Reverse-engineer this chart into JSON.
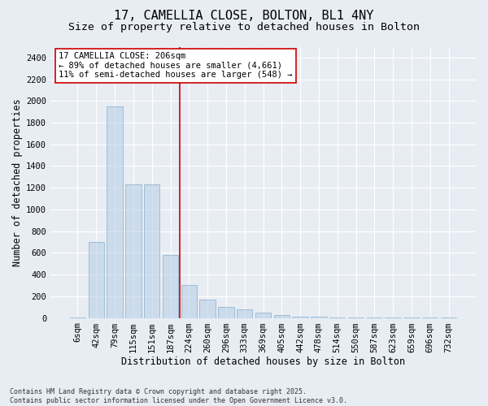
{
  "title1": "17, CAMELLIA CLOSE, BOLTON, BL1 4NY",
  "title2": "Size of property relative to detached houses in Bolton",
  "xlabel": "Distribution of detached houses by size in Bolton",
  "ylabel": "Number of detached properties",
  "bin_labels": [
    "6sqm",
    "42sqm",
    "79sqm",
    "115sqm",
    "151sqm",
    "187sqm",
    "224sqm",
    "260sqm",
    "296sqm",
    "333sqm",
    "369sqm",
    "405sqm",
    "442sqm",
    "478sqm",
    "514sqm",
    "550sqm",
    "587sqm",
    "623sqm",
    "659sqm",
    "696sqm",
    "732sqm"
  ],
  "bar_heights": [
    5,
    700,
    1950,
    1230,
    1230,
    580,
    300,
    170,
    100,
    80,
    50,
    25,
    15,
    10,
    5,
    3,
    2,
    1,
    1,
    1,
    1
  ],
  "bar_color": "#b8d0e8",
  "bar_edgecolor": "#6699bb",
  "bar_alpha": 0.6,
  "vline_color": "#cc0000",
  "vline_pos": 5.51,
  "annotation_text": "17 CAMELLIA CLOSE: 206sqm\n← 89% of detached houses are smaller (4,661)\n11% of semi-detached houses are larger (548) →",
  "ylim": [
    0,
    2500
  ],
  "yticks": [
    0,
    200,
    400,
    600,
    800,
    1000,
    1200,
    1400,
    1600,
    1800,
    2000,
    2200,
    2400
  ],
  "bg_color": "#e8edf4",
  "footer_text": "Contains HM Land Registry data © Crown copyright and database right 2025.\nContains public sector information licensed under the Open Government Licence v3.0.",
  "title_fontsize": 11,
  "subtitle_fontsize": 9.5,
  "axis_label_fontsize": 8.5,
  "tick_fontsize": 7.5,
  "annotation_fontsize": 7.5,
  "footer_fontsize": 6
}
